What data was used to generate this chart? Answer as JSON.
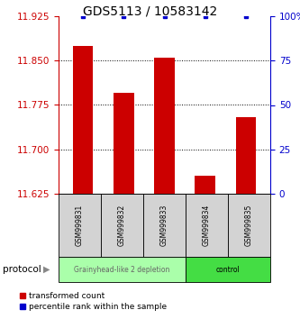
{
  "title": "GDS5113 / 10583142",
  "samples": [
    "GSM999831",
    "GSM999832",
    "GSM999833",
    "GSM999834",
    "GSM999835"
  ],
  "red_values": [
    11.875,
    11.795,
    11.855,
    11.655,
    11.755
  ],
  "blue_values": [
    100,
    100,
    100,
    100,
    100
  ],
  "ylim_left": [
    11.625,
    11.925
  ],
  "ylim_right": [
    0,
    100
  ],
  "yticks_left": [
    11.625,
    11.7,
    11.775,
    11.85,
    11.925
  ],
  "yticks_right": [
    0,
    25,
    50,
    75,
    100
  ],
  "groups": [
    {
      "label": "Grainyhead-like 2 depletion",
      "indices": [
        0,
        1,
        2
      ],
      "color": "#aaffaa",
      "text_color": "#666666"
    },
    {
      "label": "control",
      "indices": [
        3,
        4
      ],
      "color": "#44dd44",
      "text_color": "#000000"
    }
  ],
  "bar_color": "#cc0000",
  "marker_color": "#0000cc",
  "bar_width": 0.5,
  "background_color": "#ffffff",
  "title_fontsize": 10,
  "tick_fontsize": 7.5,
  "label_fontsize": 6,
  "legend_label_red": "transformed count",
  "legend_label_blue": "percentile rank within the sample"
}
